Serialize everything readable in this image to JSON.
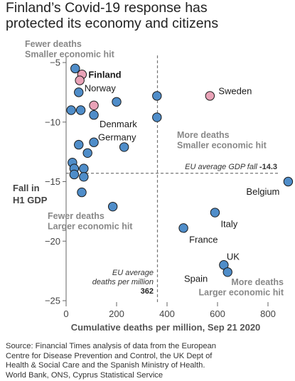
{
  "title_lines": [
    "Finland’s Covid-19 response has",
    "protected its economy and citizens"
  ],
  "source_lines": [
    "Source: Financial Times analysis of data from the European",
    "Centre for Disease Prevention and Control, the UK Dept of",
    "Health & Social Care and the Spanish Ministry of Health.",
    "World Bank, ONS, Cyprus Statistical Service"
  ],
  "chart_data": {
    "type": "scatter",
    "xlabel": "Cumulative deaths per million, Sep 21 2020",
    "ylabel_lines": [
      "Fall in",
      "H1 GDP"
    ],
    "xlim": [
      0,
      900
    ],
    "ylim": [
      -25,
      -4.5
    ],
    "x_ticks": [
      0,
      200,
      400,
      600,
      800
    ],
    "y_ticks": [
      -5,
      -10,
      -15,
      -20,
      -25
    ],
    "colors": {
      "nordic": "#e9a2b7",
      "other": "#4f8dc9",
      "outline": "#1a1a1a",
      "reference": "#777777"
    },
    "reference_lines": {
      "gdp_avg": -14.3,
      "gdp_label_text": "EU average GDP fall",
      "gdp_label_value": "-14.3",
      "deaths_avg": 362,
      "deaths_label_lines": [
        "EU average",
        "deaths per million"
      ],
      "deaths_label_value": "362"
    },
    "quadrant_labels": {
      "top_left": [
        "Fewer deaths",
        "Smaller economic hit"
      ],
      "top_right": [
        "More deaths",
        "Smaller economic hit"
      ],
      "bottom_left": [
        "Fewer deaths",
        "Larger economic hit"
      ],
      "bottom_right": [
        "More deaths",
        "Larger economic hit"
      ]
    },
    "points": [
      {
        "x": 36,
        "y": -5.5,
        "group": "other",
        "label": ""
      },
      {
        "x": 63,
        "y": -6.0,
        "group": "nordic",
        "label": "Finland"
      },
      {
        "x": 54,
        "y": -6.5,
        "group": "nordic",
        "label": ""
      },
      {
        "x": 50,
        "y": -7.5,
        "group": "other",
        "label": "Norway"
      },
      {
        "x": 200,
        "y": -8.3,
        "group": "other",
        "label": ""
      },
      {
        "x": 360,
        "y": -7.8,
        "group": "other",
        "label": ""
      },
      {
        "x": 570,
        "y": -7.8,
        "group": "nordic",
        "label": "Sweden"
      },
      {
        "x": 110,
        "y": -8.6,
        "group": "nordic",
        "label": ""
      },
      {
        "x": 20,
        "y": -9.0,
        "group": "other",
        "label": ""
      },
      {
        "x": 58,
        "y": -9.0,
        "group": "other",
        "label": ""
      },
      {
        "x": 110,
        "y": -9.4,
        "group": "other",
        "label": "Denmark"
      },
      {
        "x": 360,
        "y": -9.6,
        "group": "other",
        "label": ""
      },
      {
        "x": 110,
        "y": -11.7,
        "group": "other",
        "label": "Germany"
      },
      {
        "x": 50,
        "y": -11.9,
        "group": "other",
        "label": ""
      },
      {
        "x": 230,
        "y": -12.1,
        "group": "other",
        "label": ""
      },
      {
        "x": 85,
        "y": -12.6,
        "group": "other",
        "label": ""
      },
      {
        "x": 25,
        "y": -13.4,
        "group": "other",
        "label": ""
      },
      {
        "x": 32,
        "y": -13.9,
        "group": "other",
        "label": ""
      },
      {
        "x": 70,
        "y": -13.9,
        "group": "other",
        "label": ""
      },
      {
        "x": 32,
        "y": -14.4,
        "group": "other",
        "label": ""
      },
      {
        "x": 70,
        "y": -14.6,
        "group": "other",
        "label": ""
      },
      {
        "x": 62,
        "y": -15.9,
        "group": "other",
        "label": ""
      },
      {
        "x": 185,
        "y": -17.1,
        "group": "other",
        "label": ""
      },
      {
        "x": 880,
        "y": -15.0,
        "group": "other",
        "label": "Belgium"
      },
      {
        "x": 590,
        "y": -17.6,
        "group": "other",
        "label": "Italy"
      },
      {
        "x": 465,
        "y": -18.9,
        "group": "other",
        "label": "France"
      },
      {
        "x": 625,
        "y": -22.0,
        "group": "other",
        "label": "UK"
      },
      {
        "x": 640,
        "y": -22.6,
        "group": "other",
        "label": "Spain"
      }
    ]
  }
}
